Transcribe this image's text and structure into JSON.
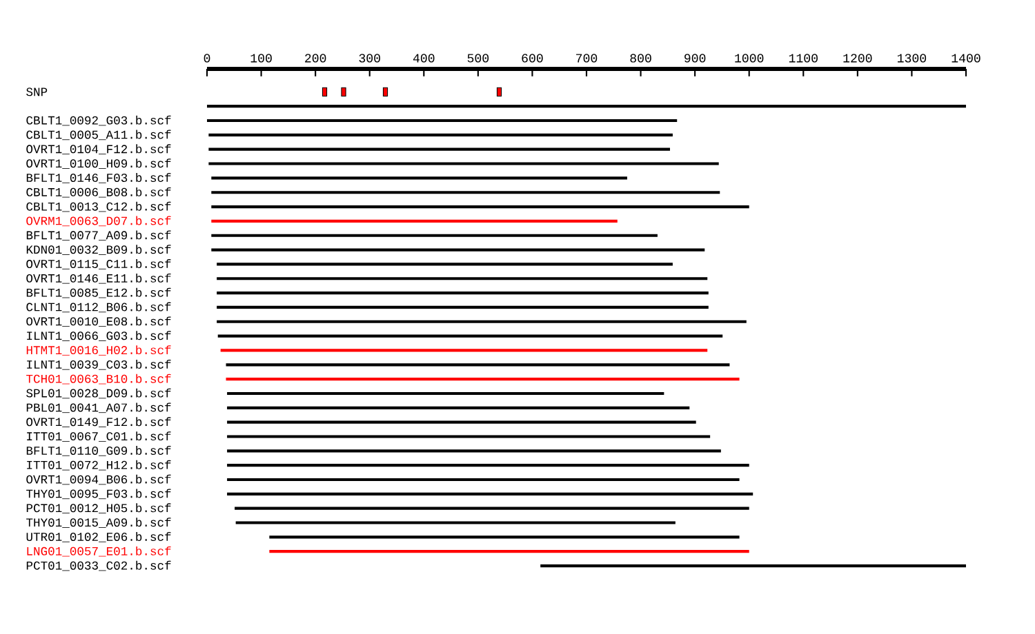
{
  "chart_data": {
    "type": "bar",
    "orientation": "horizontal",
    "categories": [
      "SNP",
      null,
      "CBLT1_0092_G03.b.scf",
      "CBLT1_0005_A11.b.scf",
      "OVRT1_0104_F12.b.scf",
      "OVRT1_0100_H09.b.scf",
      "BFLT1_0146_F03.b.scf",
      "CBLT1_0006_B08.b.scf",
      "CBLT1_0013_C12.b.scf",
      "OVRM1_0063_D07.b.scf",
      "BFLT1_0077_A09.b.scf",
      "KDN01_0032_B09.b.scf",
      "OVRT1_0115_C11.b.scf",
      "OVRT1_0146_E11.b.scf",
      "BFLT1_0085_E12.b.scf",
      "CLNT1_0112_B06.b.scf",
      "OVRT1_0010_E08.b.scf",
      "ILNT1_0066_G03.b.scf",
      "HTMT1_0016_H02.b.scf",
      "ILNT1_0039_C03.b.scf",
      "TCH01_0063_B10.b.scf",
      "SPL01_0028_D09.b.scf",
      "PBL01_0041_A07.b.scf",
      "OVRT1_0149_F12.b.scf",
      "ITT01_0067_C01.b.scf",
      "BFLT1_0110_G09.b.scf",
      "ITT01_0072_H12.b.scf",
      "OVRT1_0094_B06.b.scf",
      "THY01_0095_F03.b.scf",
      "PCT01_0012_H05.b.scf",
      "THY01_0015_A09.b.scf",
      "UTR01_0102_E06.b.scf",
      "LNG01_0057_E01.b.scf",
      "PCT01_0033_C02.b.scf"
    ],
    "series": [
      {
        "base": [
          null,
          0,
          0,
          3,
          3,
          3,
          8,
          8,
          8,
          8,
          8,
          8,
          18,
          18,
          18,
          18,
          18,
          20,
          25,
          35,
          35,
          37,
          37,
          37,
          37,
          37,
          37,
          37,
          37,
          51,
          53,
          115,
          115,
          615
        ],
        "values": [
          null,
          1400,
          867,
          856,
          851,
          941,
          767,
          938,
          992,
          749,
          823,
          910,
          841,
          905,
          907,
          907,
          977,
          931,
          898,
          929,
          947,
          806,
          853,
          865,
          891,
          911,
          963,
          945,
          970,
          949,
          811,
          867,
          885,
          785
        ],
        "colors": [
          "#000000",
          "#000000",
          "#000000",
          "#000000",
          "#000000",
          "#000000",
          "#000000",
          "#000000",
          "#000000",
          "#ff0000",
          "#000000",
          "#000000",
          "#000000",
          "#000000",
          "#000000",
          "#000000",
          "#000000",
          "#000000",
          "#ff0000",
          "#000000",
          "#ff0000",
          "#000000",
          "#000000",
          "#000000",
          "#000000",
          "#000000",
          "#000000",
          "#000000",
          "#000000",
          "#000000",
          "#000000",
          "#000000",
          "#ff0000",
          "#000000"
        ]
      },
      {
        "type": "scatter",
        "x": [
          "SNP",
          "SNP",
          "SNP",
          "SNP"
        ],
        "values": [
          217,
          252,
          329,
          539
        ],
        "color": "#ff0000"
      }
    ],
    "xlim": [
      0,
      1400
    ],
    "xticks": [
      0,
      100,
      200,
      300,
      400,
      500,
      600,
      700,
      800,
      900,
      1000,
      1100,
      1200,
      1300,
      1400
    ]
  }
}
